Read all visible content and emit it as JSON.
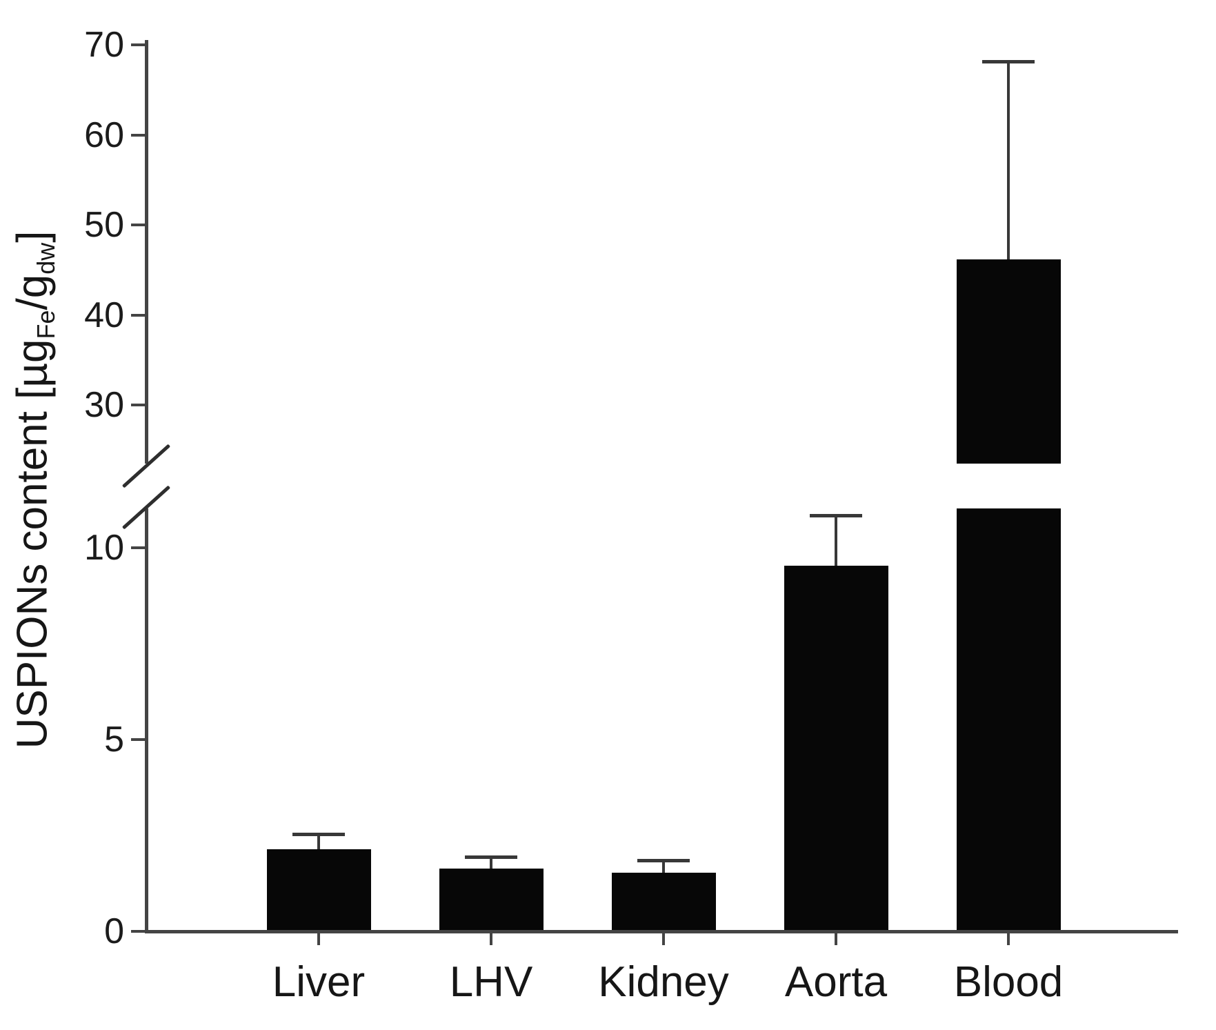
{
  "figure": {
    "background": "#ffffff",
    "bar_color": "#070707",
    "axis_color": "#444444",
    "text_color": "#1b1b1b"
  },
  "chart_data": {
    "type": "bar",
    "title": "",
    "categories": [
      "Liver",
      "LHV",
      "Kidney",
      "Aorta",
      "Blood"
    ],
    "values": [
      2.1,
      1.6,
      1.5,
      9.5,
      46
    ],
    "errors_plus": [
      0.4,
      0.3,
      0.3,
      1.3,
      22
    ],
    "series": [
      {
        "name": "USPIONs content",
        "values": [
          2.1,
          1.6,
          1.5,
          9.5,
          46
        ],
        "errors_plus": [
          0.4,
          0.3,
          0.3,
          1.3,
          22
        ]
      }
    ],
    "ylabel": "USPIONs content [µgFe/gdw]",
    "ylabel_parts": [
      {
        "text": "USPIONs content [µg"
      },
      {
        "text": "Fe",
        "subscript": true
      },
      {
        "text": "/g"
      },
      {
        "text": "dw",
        "subscript": true
      },
      {
        "text": "]"
      }
    ],
    "xlabel": "",
    "axis": {
      "y_break": true,
      "lower_ticks": [
        0,
        5,
        10
      ],
      "upper_ticks": [
        30,
        40,
        50,
        60,
        70
      ],
      "lower_range": [
        0,
        11.2
      ],
      "upper_range": [
        23,
        70
      ],
      "break_between": [
        11.2,
        23
      ],
      "grid": false,
      "legend": "none",
      "bar_fill": "solid-black",
      "error_bars": "upper-only"
    }
  }
}
